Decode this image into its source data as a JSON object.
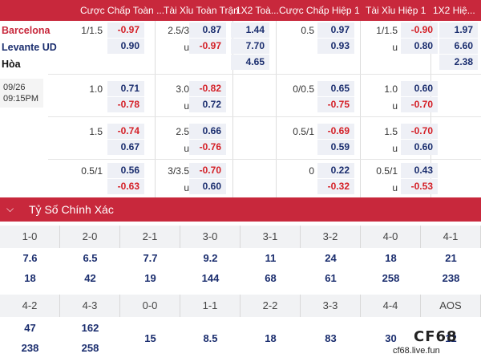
{
  "headers": [
    "Cược Chấp Toàn ...",
    "Tài Xỉu Toàn Trận",
    "1X2 Toà...",
    "Cược Chấp Hiệp 1",
    "Tài Xỉu Hiệp 1",
    "1X2 Hiệ..."
  ],
  "teams": {
    "home": "Barcelona",
    "away": "Levante UD",
    "draw": "Hòa"
  },
  "time": {
    "date": "09/26",
    "clock": "09:15PM"
  },
  "rows": [
    {
      "ah_line": "1/1.5",
      "ah_home": "-0.97",
      "ah_away": "0.90",
      "ou_line": "2.5/3",
      "ou_over": "0.87",
      "ou_u": "u",
      "ou_under": "-0.97",
      "x12_home": "1.44",
      "x12_away": "7.70",
      "x12_draw": "4.65",
      "h1_ah_line": "0.5",
      "h1_ah_home": "0.97",
      "h1_ah_away": "0.93",
      "h1_ou_line": "1/1.5",
      "h1_ou_over": "-0.90",
      "h1_ou_u": "u",
      "h1_ou_under": "0.80",
      "h1_x12_home": "1.97",
      "h1_x12_away": "6.60",
      "h1_x12_draw": "2.38"
    },
    {
      "ah_line": "1.0",
      "ah_home": "0.71",
      "ah_away": "-0.78",
      "ou_line": "3.0",
      "ou_over": "-0.82",
      "ou_u": "u",
      "ou_under": "0.72",
      "h1_ah_line": "0/0.5",
      "h1_ah_home": "0.65",
      "h1_ah_away": "-0.75",
      "h1_ou_line": "1.0",
      "h1_ou_over": "0.60",
      "h1_ou_u": "u",
      "h1_ou_under": "-0.70"
    },
    {
      "ah_line": "1.5",
      "ah_home": "-0.74",
      "ah_away": "0.67",
      "ou_line": "2.5",
      "ou_over": "0.66",
      "ou_u": "u",
      "ou_under": "-0.76",
      "h1_ah_line": "0.5/1",
      "h1_ah_home": "-0.69",
      "h1_ah_away": "0.59",
      "h1_ou_line": "1.5",
      "h1_ou_over": "-0.70",
      "h1_ou_u": "u",
      "h1_ou_under": "0.60"
    },
    {
      "ah_line": "0.5/1",
      "ah_home": "0.56",
      "ah_away": "-0.63",
      "ou_line": "3/3.5",
      "ou_over": "-0.70",
      "ou_u": "u",
      "ou_under": "0.60",
      "h1_ah_line": "0",
      "h1_ah_home": "0.22",
      "h1_ah_away": "-0.32",
      "h1_ou_line": "0.5/1",
      "h1_ou_over": "0.43",
      "h1_ou_u": "u",
      "h1_ou_under": "-0.53"
    }
  ],
  "correct_score": {
    "title": "Tỷ Số Chính Xác",
    "row1": [
      {
        "score": "1-0",
        "home": "7.6",
        "away": "18"
      },
      {
        "score": "2-0",
        "home": "6.5",
        "away": "42"
      },
      {
        "score": "2-1",
        "home": "7.7",
        "away": "19"
      },
      {
        "score": "3-0",
        "home": "9.2",
        "away": "144"
      },
      {
        "score": "3-1",
        "home": "11",
        "away": "68"
      },
      {
        "score": "3-2",
        "home": "24",
        "away": "61"
      },
      {
        "score": "4-0",
        "home": "18",
        "away": "258"
      },
      {
        "score": "4-1",
        "home": "21",
        "away": "238"
      }
    ],
    "row2": [
      {
        "score": "4-2",
        "home": "47",
        "away": "238"
      },
      {
        "score": "4-3",
        "home": "162",
        "away": "258"
      },
      {
        "score": "0-0",
        "home": "",
        "away": "15"
      },
      {
        "score": "1-1",
        "home": "",
        "away": "8.5"
      },
      {
        "score": "2-2",
        "home": "",
        "away": "18"
      },
      {
        "score": "3-3",
        "home": "",
        "away": "83"
      },
      {
        "score": "4-4",
        "home": "",
        "away": "30"
      },
      {
        "score": "AOS",
        "home": "",
        "away": "12"
      }
    ]
  },
  "watermark": {
    "brand": "CF68",
    "url": "cf68.live.fun"
  },
  "colors": {
    "header": "#c8283c",
    "positive": "#1a2d6e",
    "negative": "#d41f26"
  }
}
